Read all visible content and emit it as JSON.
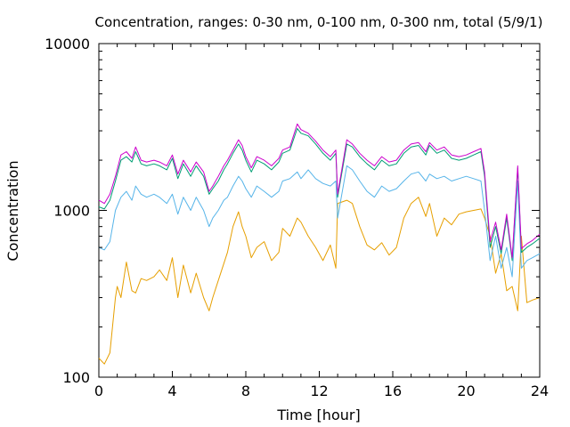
{
  "chart_data": {
    "type": "line",
    "title": "Concentration, ranges: 0-30 nm, 0-100 nm, 0-300 nm, total (5/9/1)",
    "xlabel": "Time [hour]",
    "ylabel": "Concentration",
    "xlim": [
      0,
      24
    ],
    "ylim": [
      100,
      10000
    ],
    "yscale": "log",
    "grid": false,
    "legend": "none",
    "x_ticks": [
      0,
      4,
      8,
      12,
      16,
      20,
      24
    ],
    "x_tick_labels": [
      "0",
      "4",
      "8",
      "12",
      "16",
      "20",
      "24"
    ],
    "y_ticks": [
      100,
      1000,
      10000
    ],
    "y_tick_labels": [
      "100",
      "1000",
      "10000"
    ],
    "series": [
      {
        "color": "#e69f00",
        "x": [
          0,
          0.3,
          0.6,
          0.9,
          1.0,
          1.2,
          1.5,
          1.8,
          2.0,
          2.3,
          2.6,
          3.0,
          3.3,
          3.7,
          4.0,
          4.3,
          4.6,
          5.0,
          5.3,
          5.7,
          6.0,
          6.2,
          6.5,
          6.8,
          7.0,
          7.3,
          7.6,
          7.8,
          8.0,
          8.3,
          8.6,
          9.0,
          9.4,
          9.8,
          10.0,
          10.4,
          10.8,
          11.0,
          11.4,
          11.8,
          12.2,
          12.6,
          12.9,
          13.0,
          13.5,
          13.8,
          14.2,
          14.6,
          15.0,
          15.4,
          15.8,
          16.2,
          16.6,
          17.0,
          17.4,
          17.8,
          18.0,
          18.4,
          18.8,
          19.2,
          19.6,
          20.0,
          20.4,
          20.8,
          21.0,
          21.3,
          21.6,
          21.9,
          22.2,
          22.5,
          22.8,
          23.0,
          23.3,
          23.6,
          24.0
        ],
        "values": [
          130,
          120,
          140,
          300,
          350,
          300,
          490,
          330,
          320,
          390,
          380,
          400,
          440,
          380,
          520,
          300,
          470,
          320,
          420,
          300,
          250,
          300,
          380,
          480,
          560,
          800,
          980,
          800,
          700,
          520,
          600,
          650,
          500,
          560,
          780,
          700,
          900,
          850,
          700,
          600,
          500,
          620,
          450,
          1100,
          1150,
          1100,
          800,
          620,
          580,
          640,
          540,
          600,
          900,
          1100,
          1200,
          920,
          1100,
          700,
          900,
          820,
          950,
          980,
          1000,
          1020,
          900,
          700,
          420,
          550,
          330,
          350,
          250,
          700,
          280,
          290,
          300
        ]
      },
      {
        "color": "#56b4e9",
        "x": [
          0,
          0.3,
          0.6,
          0.9,
          1.2,
          1.5,
          1.8,
          2.0,
          2.3,
          2.6,
          3.0,
          3.3,
          3.7,
          4.0,
          4.3,
          4.6,
          5.0,
          5.3,
          5.7,
          6.0,
          6.2,
          6.5,
          6.8,
          7.0,
          7.3,
          7.6,
          7.8,
          8.0,
          8.3,
          8.6,
          9.0,
          9.4,
          9.8,
          10.0,
          10.4,
          10.8,
          11.0,
          11.4,
          11.8,
          12.2,
          12.6,
          12.9,
          13.0,
          13.5,
          13.8,
          14.2,
          14.6,
          15.0,
          15.4,
          15.8,
          16.2,
          16.6,
          17.0,
          17.4,
          17.8,
          18.0,
          18.4,
          18.8,
          19.2,
          19.6,
          20.0,
          20.4,
          20.8,
          21.0,
          21.3,
          21.6,
          21.9,
          22.2,
          22.5,
          22.8,
          23.0,
          23.3,
          23.6,
          24.0
        ],
        "values": [
          600,
          580,
          650,
          1000,
          1200,
          1300,
          1150,
          1400,
          1250,
          1200,
          1250,
          1200,
          1100,
          1250,
          950,
          1200,
          1000,
          1200,
          1000,
          800,
          900,
          1000,
          1150,
          1200,
          1400,
          1600,
          1500,
          1350,
          1200,
          1400,
          1300,
          1200,
          1300,
          1500,
          1550,
          1700,
          1550,
          1750,
          1550,
          1450,
          1400,
          1500,
          900,
          1850,
          1750,
          1500,
          1300,
          1200,
          1400,
          1300,
          1350,
          1500,
          1650,
          1700,
          1500,
          1650,
          1550,
          1600,
          1500,
          1550,
          1600,
          1550,
          1500,
          1000,
          500,
          700,
          450,
          600,
          400,
          1500,
          450,
          500,
          520,
          550
        ]
      },
      {
        "color": "#009e73",
        "x": [
          0,
          0.3,
          0.6,
          0.9,
          1.2,
          1.5,
          1.8,
          2.0,
          2.3,
          2.6,
          3.0,
          3.3,
          3.7,
          4.0,
          4.3,
          4.6,
          5.0,
          5.3,
          5.7,
          6.0,
          6.2,
          6.5,
          6.8,
          7.0,
          7.3,
          7.6,
          7.8,
          8.0,
          8.3,
          8.6,
          9.0,
          9.4,
          9.8,
          10.0,
          10.4,
          10.8,
          11.0,
          11.4,
          11.8,
          12.2,
          12.6,
          12.9,
          13.0,
          13.5,
          13.8,
          14.2,
          14.6,
          15.0,
          15.4,
          15.8,
          16.2,
          16.6,
          17.0,
          17.4,
          17.8,
          18.0,
          18.4,
          18.8,
          19.2,
          19.6,
          20.0,
          20.4,
          20.8,
          21.0,
          21.3,
          21.6,
          21.9,
          22.2,
          22.5,
          22.8,
          23.0,
          23.3,
          23.6,
          24.0
        ],
        "values": [
          1050,
          1020,
          1150,
          1500,
          2000,
          2100,
          1950,
          2250,
          1900,
          1850,
          1900,
          1850,
          1750,
          2050,
          1550,
          1900,
          1600,
          1850,
          1600,
          1250,
          1350,
          1500,
          1750,
          1900,
          2200,
          2500,
          2300,
          2000,
          1700,
          2000,
          1900,
          1750,
          1950,
          2200,
          2300,
          3100,
          2900,
          2800,
          2500,
          2200,
          2000,
          2200,
          1200,
          2500,
          2400,
          2100,
          1900,
          1750,
          2000,
          1850,
          1900,
          2200,
          2400,
          2450,
          2150,
          2450,
          2200,
          2300,
          2050,
          2000,
          2050,
          2150,
          2250,
          1600,
          600,
          800,
          550,
          900,
          500,
          1800,
          560,
          600,
          630,
          680
        ]
      },
      {
        "color": "#cc00cc",
        "x": [
          0,
          0.3,
          0.6,
          0.9,
          1.2,
          1.5,
          1.8,
          2.0,
          2.3,
          2.6,
          3.0,
          3.3,
          3.7,
          4.0,
          4.3,
          4.6,
          5.0,
          5.3,
          5.7,
          6.0,
          6.2,
          6.5,
          6.8,
          7.0,
          7.3,
          7.6,
          7.8,
          8.0,
          8.3,
          8.6,
          9.0,
          9.4,
          9.8,
          10.0,
          10.4,
          10.8,
          11.0,
          11.4,
          11.8,
          12.2,
          12.6,
          12.9,
          13.0,
          13.5,
          13.8,
          14.2,
          14.6,
          15.0,
          15.4,
          15.8,
          16.2,
          16.6,
          17.0,
          17.4,
          17.8,
          18.0,
          18.4,
          18.8,
          19.2,
          19.6,
          20.0,
          20.4,
          20.8,
          21.0,
          21.3,
          21.6,
          21.9,
          22.2,
          22.5,
          22.8,
          23.0,
          23.3,
          23.6,
          24.0
        ],
        "values": [
          1150,
          1100,
          1250,
          1600,
          2150,
          2250,
          2050,
          2400,
          2000,
          1950,
          2000,
          1950,
          1850,
          2150,
          1650,
          2000,
          1700,
          1950,
          1700,
          1300,
          1400,
          1600,
          1850,
          2000,
          2300,
          2650,
          2450,
          2100,
          1800,
          2100,
          2000,
          1850,
          2050,
          2300,
          2400,
          3300,
          3050,
          2900,
          2600,
          2300,
          2100,
          2300,
          1250,
          2650,
          2500,
          2200,
          2000,
          1850,
          2100,
          1950,
          2000,
          2300,
          2500,
          2550,
          2250,
          2550,
          2300,
          2400,
          2150,
          2100,
          2150,
          2250,
          2350,
          1700,
          650,
          850,
          580,
          950,
          520,
          1850,
          590,
          630,
          660,
          720
        ]
      }
    ]
  }
}
